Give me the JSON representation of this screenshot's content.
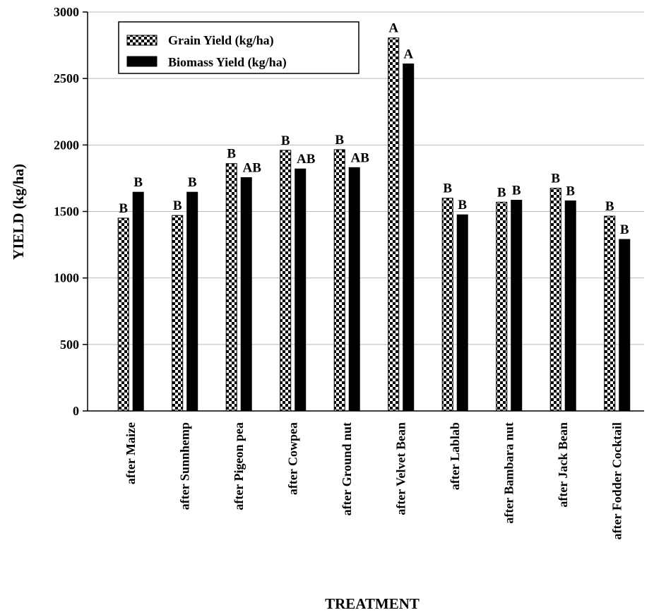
{
  "chart_data": {
    "type": "bar",
    "title": "",
    "xlabel": "TREATMENT",
    "ylabel": "YIELD (kg/ha)",
    "ylim": [
      0,
      3000
    ],
    "yticks": [
      0,
      500,
      1000,
      1500,
      2000,
      2500,
      3000
    ],
    "ytick_labels": [
      "0",
      "500",
      "1000",
      "1500",
      "2000",
      "2500",
      "3000"
    ],
    "grid": "horizontal",
    "legend_position": "top-left",
    "categories": [
      "after Maize",
      "after Sunnhemp",
      "after Pigeon pea",
      "after Cowpea",
      "after Ground nut",
      "after Velvet Bean",
      "after Lablab",
      "after Bambara nut",
      "after Jack Bean",
      "after Fodder Cocktail"
    ],
    "series": [
      {
        "name": "Grain Yield (kg/ha)",
        "pattern": "checkerboard",
        "color": "#000000",
        "values": [
          1450,
          1470,
          1860,
          1960,
          1965,
          2805,
          1600,
          1570,
          1675,
          1465
        ],
        "labels": [
          "B",
          "B",
          "B",
          "B",
          "B",
          "A",
          "B",
          "B",
          "B",
          "B"
        ]
      },
      {
        "name": "Biomass Yield (kg/ha)",
        "pattern": "solid",
        "color": "#000000",
        "values": [
          1645,
          1645,
          1755,
          1820,
          1830,
          2610,
          1475,
          1585,
          1580,
          1290
        ],
        "labels": [
          "B",
          "B",
          "AB",
          "AB",
          "AB",
          "A",
          "B",
          "B",
          "B",
          "B"
        ]
      }
    ]
  }
}
